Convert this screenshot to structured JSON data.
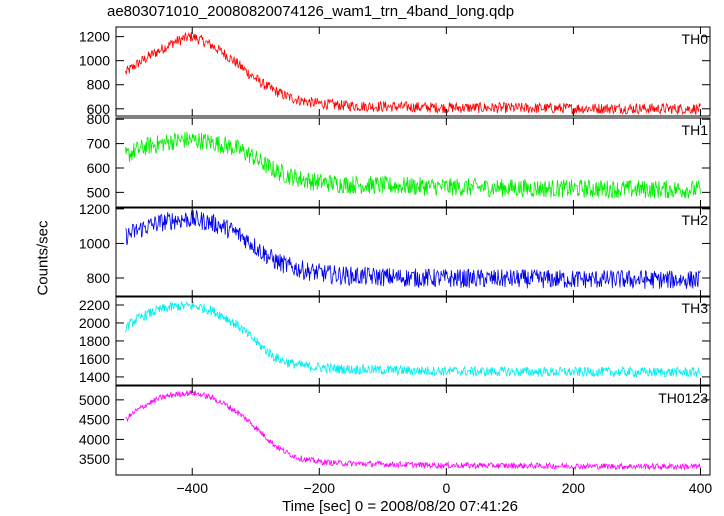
{
  "chart_data": {
    "type": "line",
    "title": "ae803071010_20080820074126_wam1_trn_4band_long.qdp",
    "xlabel": "Time [sec] 0 = 2008/08/20 07:41:26",
    "ylabel": "Counts/sec",
    "xlim": [
      -520,
      415
    ],
    "x_ticks": [
      -400,
      -200,
      0,
      200,
      400
    ],
    "grid": false,
    "series_x": [
      -505,
      -490,
      -470,
      -450,
      -430,
      -410,
      -400,
      -390,
      -370,
      -350,
      -330,
      -310,
      -290,
      -270,
      -250,
      -230,
      -210,
      -190,
      -170,
      -150,
      -120,
      -90,
      -60,
      -30,
      0,
      50,
      100,
      150,
      200,
      250,
      300,
      350,
      400
    ],
    "panels": [
      {
        "name": "TH0",
        "color": "#ff0000",
        "ylim": [
          540,
          1280
        ],
        "ticks": [
          600,
          800,
          1000,
          1200
        ],
        "noise": 45,
        "values": [
          900,
          960,
          1030,
          1090,
          1150,
          1190,
          1200,
          1180,
          1130,
          1060,
          980,
          890,
          810,
          750,
          700,
          670,
          650,
          640,
          630,
          625,
          620,
          618,
          615,
          612,
          610,
          608,
          607,
          605,
          604,
          603,
          602,
          601,
          600
        ]
      },
      {
        "name": "TH1",
        "color": "#00ee00",
        "ylim": [
          440,
          805
        ],
        "ticks": [
          500,
          600,
          700,
          800
        ],
        "noise": 38,
        "values": [
          650,
          670,
          690,
          700,
          710,
          715,
          715,
          712,
          705,
          695,
          680,
          655,
          620,
          590,
          570,
          555,
          545,
          540,
          535,
          532,
          530,
          528,
          526,
          524,
          522,
          520,
          518,
          516,
          515,
          514,
          513,
          512,
          512
        ]
      },
      {
        "name": "TH2",
        "color": "#0000ee",
        "ylim": [
          690,
          1205
        ],
        "ticks": [
          800,
          1000,
          1200
        ],
        "noise": 55,
        "values": [
          1040,
          1070,
          1100,
          1120,
          1135,
          1140,
          1140,
          1135,
          1120,
          1095,
          1060,
          1010,
          950,
          900,
          870,
          850,
          835,
          825,
          818,
          812,
          808,
          805,
          802,
          800,
          798,
          796,
          795,
          794,
          793,
          792,
          791,
          790,
          790
        ]
      },
      {
        "name": "TH3",
        "color": "#00eeee",
        "ylim": [
          1310,
          2300
        ],
        "ticks": [
          1400,
          1600,
          1800,
          2000,
          2200
        ],
        "noise": 55,
        "values": [
          1950,
          2030,
          2100,
          2150,
          2180,
          2190,
          2190,
          2180,
          2140,
          2070,
          1980,
          1860,
          1730,
          1620,
          1560,
          1530,
          1510,
          1500,
          1490,
          1485,
          1480,
          1475,
          1470,
          1468,
          1465,
          1460,
          1458,
          1456,
          1455,
          1454,
          1453,
          1452,
          1452
        ]
      },
      {
        "name": "TH0123",
        "color": "#ff00ff",
        "ylim": [
          3100,
          5350
        ],
        "ticks": [
          3500,
          4000,
          4500,
          5000
        ],
        "noise": 75,
        "values": [
          4500,
          4700,
          4900,
          5050,
          5130,
          5170,
          5170,
          5150,
          5060,
          4900,
          4700,
          4450,
          4150,
          3850,
          3650,
          3520,
          3460,
          3420,
          3400,
          3390,
          3380,
          3370,
          3360,
          3350,
          3345,
          3340,
          3335,
          3330,
          3325,
          3320,
          3318,
          3316,
          3315
        ]
      }
    ]
  }
}
